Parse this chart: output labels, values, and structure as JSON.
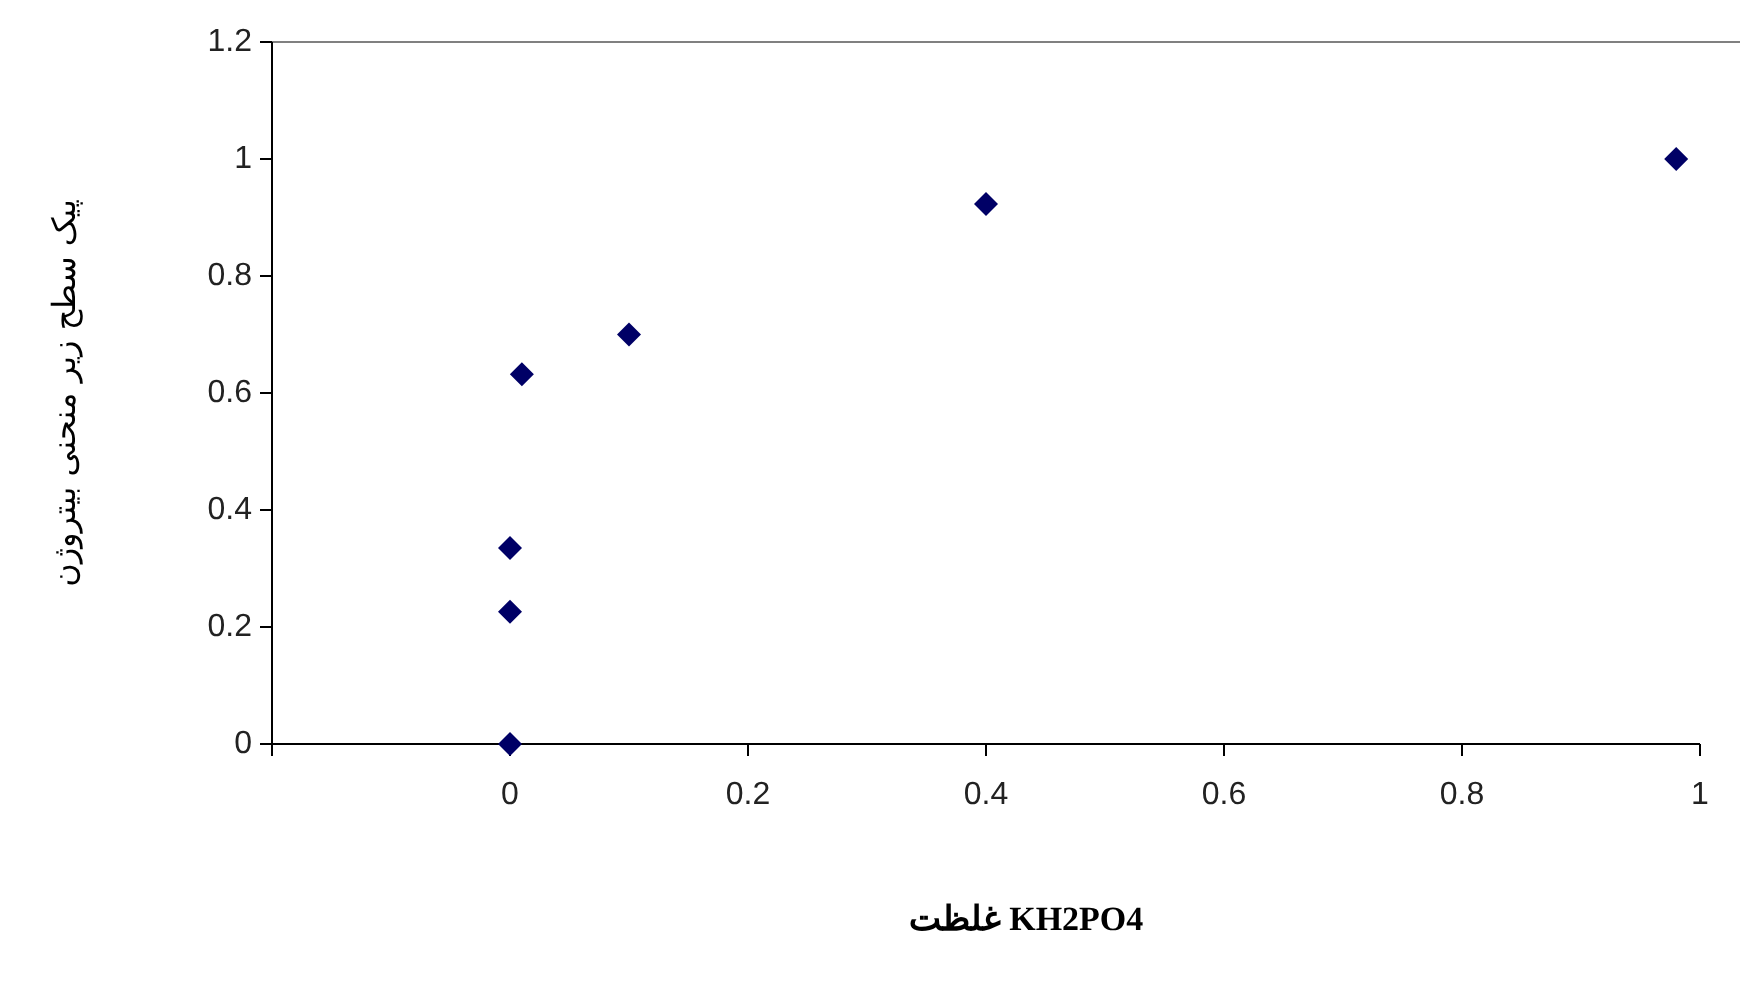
{
  "chart_data": {
    "type": "scatter",
    "xlabel": "غلظت KH2PO4",
    "ylabel": "پیک سطح زیر منحنی بیتروژن",
    "marker": "diamond",
    "grid": false,
    "xlim": [
      -0.2,
      1
    ],
    "xticks": [
      {
        "value": -0.2,
        "label": null
      },
      0,
      0.2,
      0.4,
      0.6,
      0.8,
      1
    ],
    "ylim": [
      0,
      1.2
    ],
    "yticks": [
      0,
      0.2,
      0.4,
      0.6,
      0.8,
      1,
      1.2
    ],
    "series": [
      {
        "color": "#000066",
        "x": [
          0,
          0,
          0,
          0.01,
          0.1,
          0.4,
          0.98
        ],
        "values": [
          0,
          0.226,
          0.335,
          0.632,
          0.7,
          0.923,
          1.0
        ]
      }
    ]
  }
}
